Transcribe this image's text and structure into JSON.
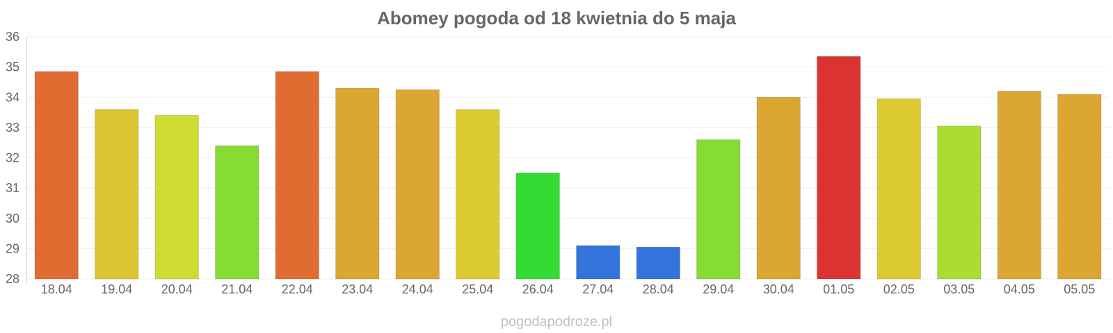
{
  "chart_data": {
    "type": "bar",
    "title": "Abomey pogoda od 18 kwietnia do 5 maja",
    "xlabel": "",
    "ylabel": "",
    "categories": [
      "18.04",
      "19.04",
      "20.04",
      "21.04",
      "22.04",
      "23.04",
      "24.04",
      "25.04",
      "26.04",
      "27.04",
      "28.04",
      "29.04",
      "30.04",
      "01.05",
      "02.05",
      "03.05",
      "04.05",
      "05.05"
    ],
    "values": [
      34.85,
      33.6,
      33.4,
      32.4,
      34.85,
      34.3,
      34.25,
      33.6,
      31.5,
      29.1,
      29.05,
      32.6,
      34.0,
      35.35,
      33.95,
      33.05,
      34.2,
      34.1
    ],
    "colors": [
      "#e06c32",
      "#dcc532",
      "#cfdc32",
      "#86dc32",
      "#e06c32",
      "#dca632",
      "#dca632",
      "#dcca32",
      "#32dc32",
      "#3273dc",
      "#3273dc",
      "#86dc32",
      "#dca632",
      "#dc3232",
      "#dcca32",
      "#aadc32",
      "#dca632",
      "#dca632"
    ],
    "ylim": [
      28,
      36
    ],
    "yticks": [
      28,
      29,
      30,
      31,
      32,
      33,
      34,
      35,
      36
    ],
    "grid": true,
    "legend": "none"
  },
  "watermark": "pogodapodroze.pl"
}
